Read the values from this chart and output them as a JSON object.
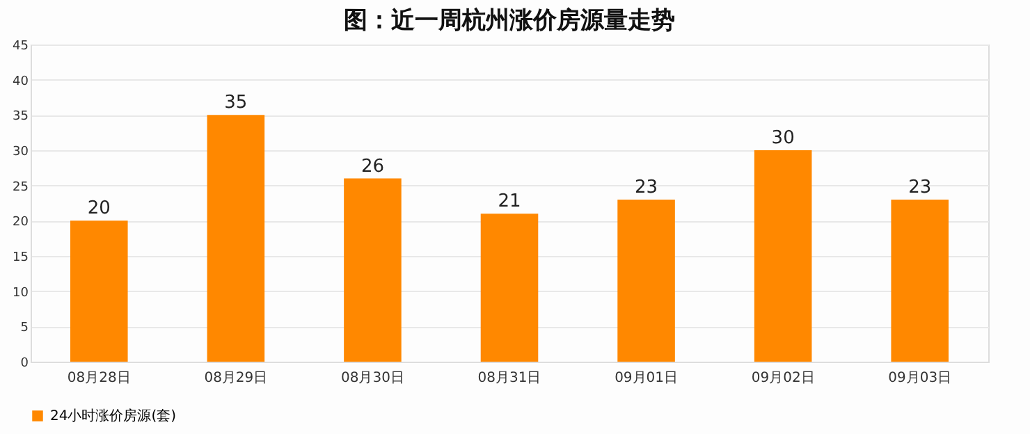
{
  "chart_data": {
    "type": "bar",
    "title": "图：近一周杭州涨价房源量走势",
    "categories": [
      "08月28日",
      "08月29日",
      "08月30日",
      "08月31日",
      "09月01日",
      "09月02日",
      "09月03日"
    ],
    "series": [
      {
        "name": "24小时涨价房源(套)",
        "color": "#ff8800",
        "values": [
          20,
          35,
          26,
          21,
          23,
          30,
          23
        ]
      }
    ],
    "ylim": [
      0,
      45
    ],
    "yticks": [
      0,
      5,
      10,
      15,
      20,
      25,
      30,
      35,
      40,
      45
    ],
    "grid": "y",
    "legend": "bottom",
    "data_labels": true
  }
}
